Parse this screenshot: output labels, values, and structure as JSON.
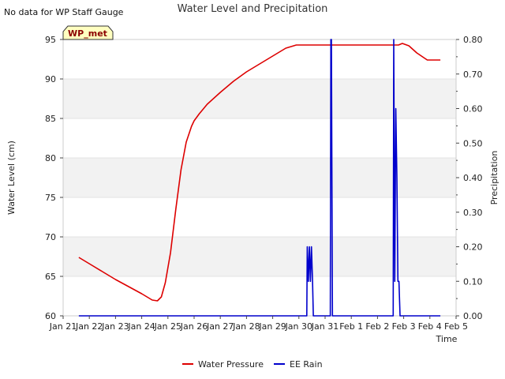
{
  "chart_data": {
    "type": "line",
    "title": "Water Level and Precipitation",
    "note": "No data for WP Staff Gauge",
    "badge": "WP_met",
    "xlabel": "Time",
    "ylabel_left": "Water Level (cm)",
    "ylabel_right": "Precipitation",
    "xlim": [
      0,
      15
    ],
    "ylim_left": [
      60,
      95
    ],
    "ylim_right": [
      0,
      0.8
    ],
    "x_ticks": [
      {
        "x": 0,
        "label": "Jan 21"
      },
      {
        "x": 1,
        "label": "Jan 22"
      },
      {
        "x": 2,
        "label": "Jan 23"
      },
      {
        "x": 3,
        "label": "Jan 24"
      },
      {
        "x": 4,
        "label": "Jan 25"
      },
      {
        "x": 5,
        "label": "Jan 26"
      },
      {
        "x": 6,
        "label": "Jan 27"
      },
      {
        "x": 7,
        "label": "Jan 28"
      },
      {
        "x": 8,
        "label": "Jan 29"
      },
      {
        "x": 9,
        "label": "Jan 30"
      },
      {
        "x": 10,
        "label": "Jan 31"
      },
      {
        "x": 11,
        "label": "Feb 1"
      },
      {
        "x": 12,
        "label": "Feb 2"
      },
      {
        "x": 13,
        "label": "Feb 3"
      },
      {
        "x": 14,
        "label": "Feb 4"
      },
      {
        "x": 15,
        "label": "Feb 5"
      }
    ],
    "y_ticks_left": [
      {
        "v": 60,
        "label": "60"
      },
      {
        "v": 65,
        "label": "65"
      },
      {
        "v": 70,
        "label": "70"
      },
      {
        "v": 75,
        "label": "75"
      },
      {
        "v": 80,
        "label": "80"
      },
      {
        "v": 85,
        "label": "85"
      },
      {
        "v": 90,
        "label": "90"
      },
      {
        "v": 95,
        "label": "95"
      }
    ],
    "y_ticks_right": [
      {
        "v": 0,
        "label": "0.00"
      },
      {
        "v": 0.1,
        "label": "0.10"
      },
      {
        "v": 0.2,
        "label": "0.20"
      },
      {
        "v": 0.3,
        "label": "0.30"
      },
      {
        "v": 0.4,
        "label": "0.40"
      },
      {
        "v": 0.5,
        "label": "0.50"
      },
      {
        "v": 0.6,
        "label": "0.60"
      },
      {
        "v": 0.7,
        "label": "0.70"
      },
      {
        "v": 0.8,
        "label": "0.80"
      }
    ],
    "band_color": "#f2f2f2",
    "series": [
      {
        "name": "Water Pressure",
        "axis": "left",
        "color": "#dd0000",
        "x": [
          0.6,
          1.0,
          1.5,
          2.0,
          2.5,
          3.0,
          3.4,
          3.6,
          3.75,
          3.9,
          4.1,
          4.3,
          4.5,
          4.7,
          4.9,
          5.0,
          5.2,
          5.5,
          6.0,
          6.5,
          7.0,
          7.5,
          8.0,
          8.5,
          8.9,
          9.0,
          10.0,
          11.0,
          12.0,
          12.8,
          12.95,
          13.2,
          13.5,
          13.9,
          14.4
        ],
        "y": [
          67.4,
          66.6,
          65.6,
          64.6,
          63.7,
          62.8,
          62.0,
          61.9,
          62.4,
          64.2,
          68.0,
          73.5,
          78.5,
          82.0,
          84.0,
          84.7,
          85.6,
          86.8,
          88.3,
          89.7,
          90.9,
          91.9,
          92.9,
          93.9,
          94.3,
          94.3,
          94.3,
          94.3,
          94.3,
          94.3,
          94.5,
          94.2,
          93.3,
          92.4,
          92.4
        ]
      },
      {
        "name": "EE Rain",
        "axis": "right",
        "color": "#0000cc",
        "x": [
          0.6,
          9.3,
          9.32,
          9.36,
          9.4,
          9.44,
          9.48,
          9.52,
          9.55,
          9.6,
          10.2,
          10.22,
          10.24,
          10.28,
          10.3,
          12.6,
          12.62,
          12.66,
          12.7,
          12.74,
          12.78,
          12.82,
          12.86,
          12.9,
          12.95,
          14.4
        ],
        "y": [
          0.0,
          0.0,
          0.2,
          0.1,
          0.2,
          0.1,
          0.2,
          0.1,
          0.0,
          0.0,
          0.0,
          0.8,
          0.8,
          0.0,
          0.0,
          0.0,
          0.8,
          0.1,
          0.6,
          0.4,
          0.1,
          0.1,
          0.0,
          0.0,
          0.0,
          0.0
        ]
      }
    ]
  }
}
